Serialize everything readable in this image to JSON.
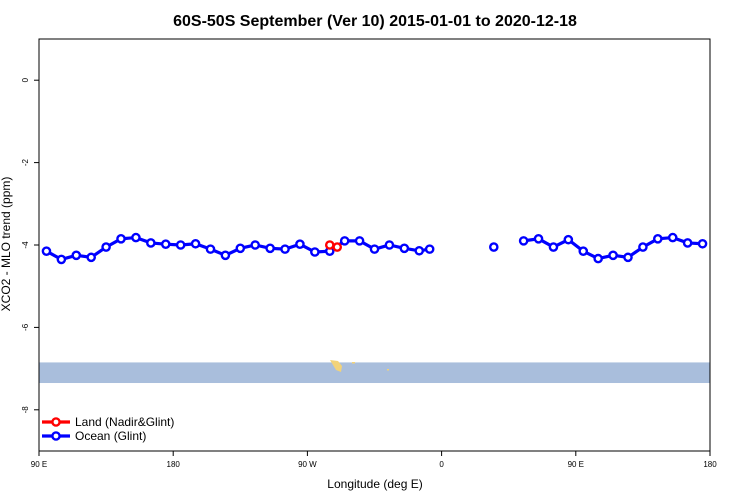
{
  "chart_data": {
    "type": "line",
    "title": "60S-50S September (Ver 10)   2015-01-01 to 2020-12-18",
    "xlabel": "Longitude (deg E)",
    "ylabel": "XCO2 - MLO trend (ppm)",
    "xlim": [
      90,
      540
    ],
    "ylim": [
      -9,
      1
    ],
    "x_ticks": [
      {
        "value": 90,
        "label": "90 E"
      },
      {
        "value": 180,
        "label": "180"
      },
      {
        "value": 270,
        "label": "90 W"
      },
      {
        "value": 360,
        "label": "0"
      },
      {
        "value": 450,
        "label": "90 E"
      },
      {
        "value": 540,
        "label": "180"
      }
    ],
    "y_ticks": [
      {
        "value": 0,
        "label": "0"
      },
      {
        "value": -2,
        "label": "-2"
      },
      {
        "value": -4,
        "label": "-4"
      },
      {
        "value": -6,
        "label": "-6"
      },
      {
        "value": -8,
        "label": "-8"
      }
    ],
    "grid": false,
    "legend_position": "bottom-left",
    "series": [
      {
        "name": "Land (Nadir&Glint)",
        "color": "#ff0000",
        "segments": [
          [
            [
              285,
              -4.0
            ],
            [
              290,
              -4.05
            ]
          ]
        ]
      },
      {
        "name": "Ocean (Glint)",
        "color": "#0000ff",
        "segments": [
          [
            [
              95,
              -4.15
            ],
            [
              105,
              -4.35
            ],
            [
              115,
              -4.25
            ],
            [
              125,
              -4.3
            ],
            [
              135,
              -4.05
            ],
            [
              145,
              -3.85
            ],
            [
              155,
              -3.82
            ],
            [
              165,
              -3.95
            ],
            [
              175,
              -3.98
            ],
            [
              185,
              -4.0
            ],
            [
              195,
              -3.97
            ],
            [
              205,
              -4.1
            ],
            [
              215,
              -4.25
            ],
            [
              225,
              -4.08
            ],
            [
              235,
              -4.0
            ],
            [
              245,
              -4.08
            ],
            [
              255,
              -4.1
            ],
            [
              265,
              -3.98
            ],
            [
              275,
              -4.17
            ],
            [
              285,
              -4.15
            ],
            [
              295,
              -3.9
            ],
            [
              305,
              -3.9
            ],
            [
              315,
              -4.1
            ],
            [
              325,
              -4.0
            ],
            [
              335,
              -4.08
            ],
            [
              345,
              -4.14
            ],
            [
              352,
              -4.1
            ]
          ],
          [
            [
              395,
              -4.05
            ]
          ],
          [
            [
              415,
              -3.9
            ],
            [
              425,
              -3.85
            ],
            [
              435,
              -4.05
            ],
            [
              445,
              -3.87
            ],
            [
              455,
              -4.15
            ],
            [
              465,
              -4.33
            ],
            [
              475,
              -4.25
            ],
            [
              485,
              -4.3
            ],
            [
              495,
              -4.05
            ],
            [
              505,
              -3.85
            ],
            [
              515,
              -3.82
            ],
            [
              525,
              -3.95
            ],
            [
              535,
              -3.97
            ]
          ]
        ]
      }
    ],
    "map_strip": {
      "y_top": -6.85,
      "y_bottom": -7.35,
      "color": "#a9bedc",
      "land_color": "#f2d37a"
    }
  }
}
